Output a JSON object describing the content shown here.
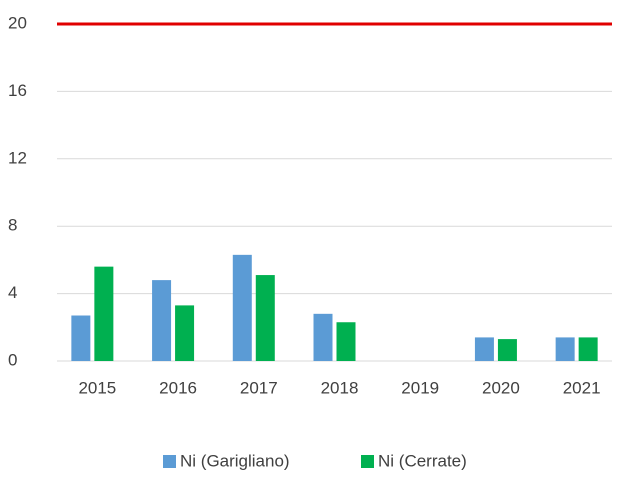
{
  "chart_data": {
    "type": "bar",
    "categories": [
      "2015",
      "2016",
      "2017",
      "2018",
      "2019",
      "2020",
      "2021"
    ],
    "series": [
      {
        "name": "Ni (Garigliano)",
        "color": "#5b9bd5",
        "values": [
          2.7,
          4.8,
          6.3,
          2.8,
          null,
          1.4,
          1.4
        ]
      },
      {
        "name": "Ni (Cerrate)",
        "color": "#00b050",
        "values": [
          5.6,
          3.3,
          5.1,
          2.3,
          null,
          1.3,
          1.4
        ]
      }
    ],
    "reference_line": {
      "value": 20,
      "color": "#e00000"
    },
    "ylim": [
      0,
      20
    ],
    "yticks": [
      0,
      4,
      8,
      12,
      16,
      20
    ],
    "grid": true,
    "legend": "bottom"
  }
}
